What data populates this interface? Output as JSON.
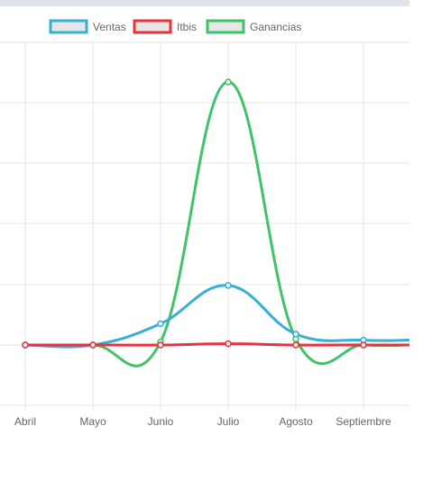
{
  "chart_data": {
    "type": "line",
    "categories": [
      "Abril",
      "Mayo",
      "Junio",
      "Julio",
      "Agosto",
      "Septiembre"
    ],
    "ylim": [
      -100,
      500
    ],
    "grid": true,
    "legend_position": "top",
    "series": [
      {
        "name": "Ventas",
        "color": "#36b0d3",
        "values": [
          0,
          0,
          35,
          98,
          18,
          8
        ]
      },
      {
        "name": "Itbis",
        "color": "#e8323f",
        "values": [
          0,
          0,
          0,
          2,
          0,
          0
        ]
      },
      {
        "name": "Ganancias",
        "color": "#3fc36a",
        "values": [
          0,
          0,
          5,
          433,
          10,
          0
        ]
      }
    ]
  }
}
